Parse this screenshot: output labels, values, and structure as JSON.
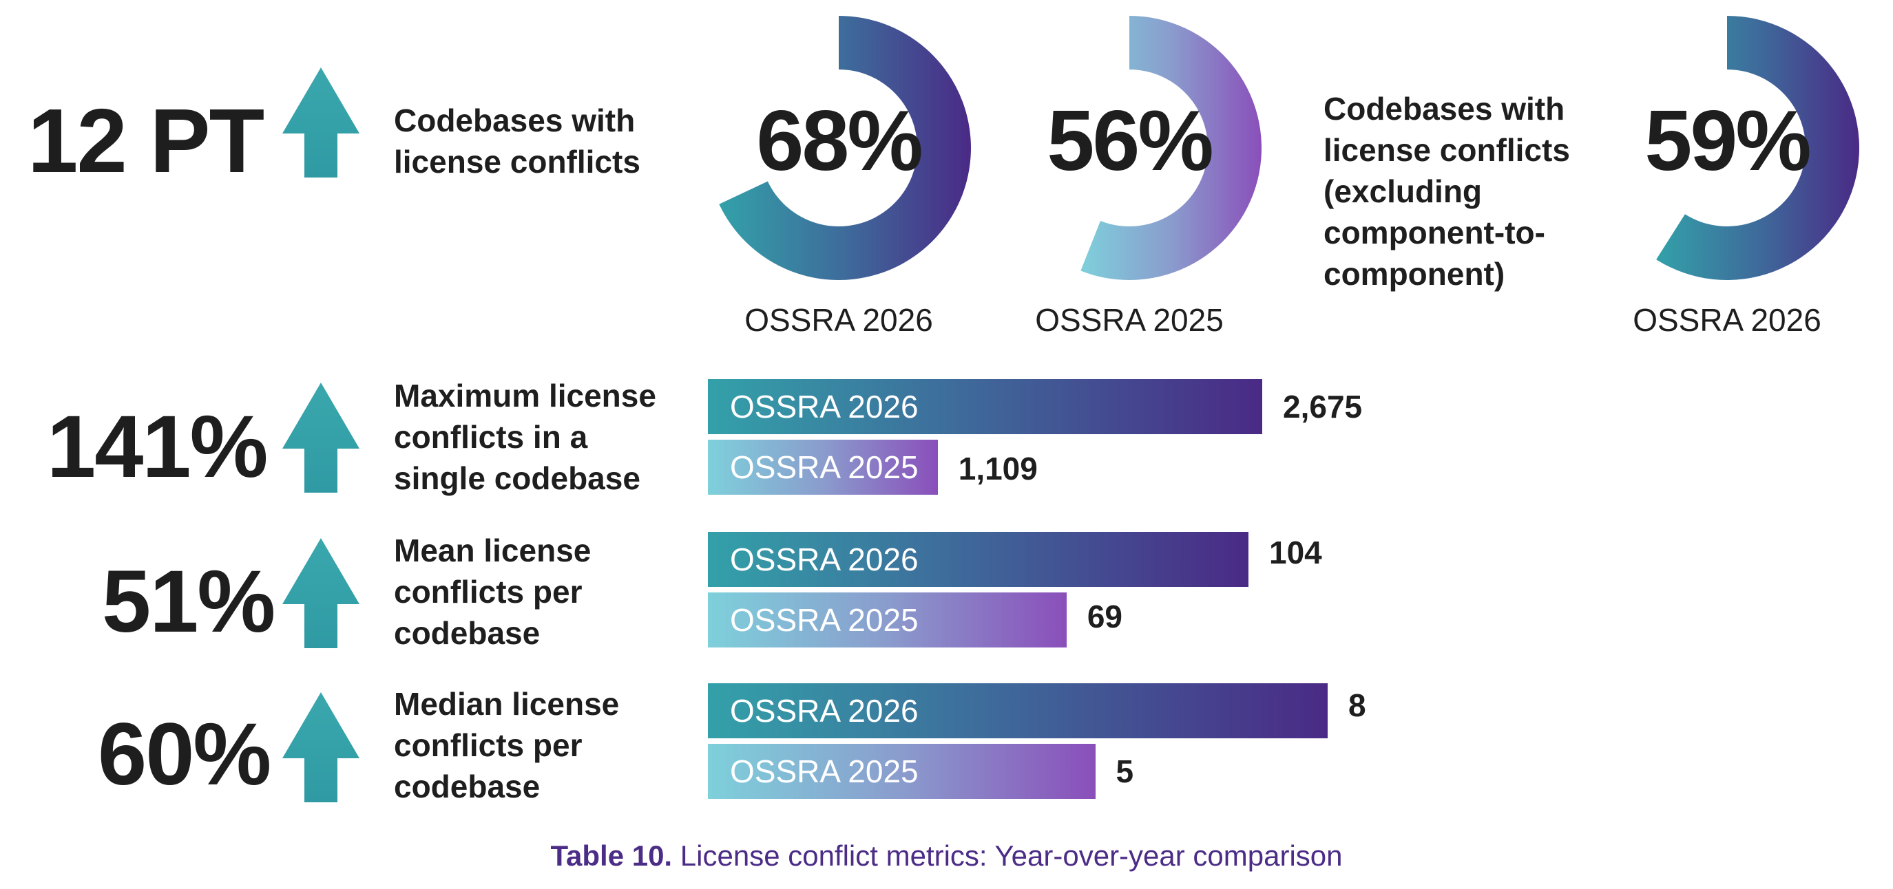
{
  "chart_data": {
    "type": "bar",
    "caption_prefix": "Table 10.",
    "caption_text": "License conflict metrics: Year-over-year comparison",
    "colors": {
      "teal": "#33a1a9",
      "purple": "#4a2a86",
      "light_teal": "#7ed0db",
      "light_purple": "#8a4fba",
      "caption": "#4b2c86"
    },
    "headline": {
      "change": "12 PT",
      "direction": "up",
      "label_lines": [
        "Codebases with",
        "license conflicts"
      ]
    },
    "donuts": [
      {
        "value": 68,
        "label": "68%",
        "caption": "OSSRA 2026",
        "scheme": "dark"
      },
      {
        "value": 56,
        "label": "56%",
        "caption": "OSSRA 2025",
        "scheme": "light"
      }
    ],
    "secondary": {
      "label_lines": [
        "Codebases with",
        "license conflicts",
        "(excluding",
        "component-to-",
        "component)"
      ],
      "donut": {
        "value": 59,
        "label": "59%",
        "caption": "OSSRA 2026",
        "scheme": "dark"
      }
    },
    "categories": [
      "Maximum license conflicts in a single codebase",
      "Mean license conflicts per codebase",
      "Median license conflicts per codebase"
    ],
    "series": [
      {
        "name": "OSSRA 2026",
        "values": [
          2675,
          104,
          8
        ]
      },
      {
        "name": "OSSRA 2025",
        "values": [
          1109,
          69,
          5
        ]
      }
    ],
    "metrics": [
      {
        "change": "141%",
        "direction": "up",
        "label_lines": [
          "Maximum license",
          "conflicts in a",
          "single codebase"
        ],
        "bars": [
          {
            "name": "OSSRA 2026",
            "value": 2675,
            "display": "2,675"
          },
          {
            "name": "OSSRA 2025",
            "value": 1109,
            "display": "1,109"
          }
        ]
      },
      {
        "change": "51%",
        "direction": "up",
        "label_lines": [
          "Mean license",
          "conflicts per",
          "codebase"
        ],
        "bars": [
          {
            "name": "OSSRA 2026",
            "value": 104,
            "display": "104"
          },
          {
            "name": "OSSRA 2025",
            "value": 69,
            "display": "69"
          }
        ]
      },
      {
        "change": "60%",
        "direction": "up",
        "label_lines": [
          "Median license",
          "conflicts per",
          "codebase"
        ],
        "bars": [
          {
            "name": "OSSRA 2026",
            "value": 8,
            "display": "8"
          },
          {
            "name": "OSSRA 2025",
            "value": 5,
            "display": "5"
          }
        ]
      }
    ]
  }
}
